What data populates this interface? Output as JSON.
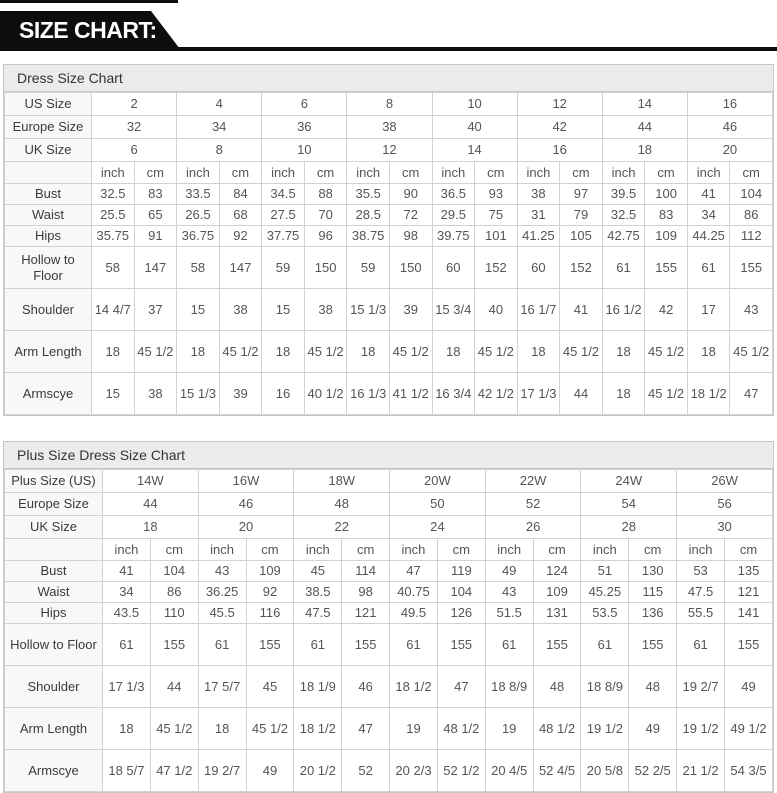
{
  "banner": {
    "title": "SIZE CHART:"
  },
  "colors": {
    "banner_bg": "#0d0d0d",
    "banner_text": "#ffffff",
    "section_title_bg": "#ebebeb",
    "border": "#c6c6c6",
    "label_cell_bg": "#f8f8f8",
    "value_text": "#555555",
    "label_text": "#3a3a3a"
  },
  "tables": [
    {
      "name": "dress-size-chart-table",
      "title": "Dress Size Chart",
      "size_rows": [
        {
          "label": "US Size",
          "values": [
            "2",
            "4",
            "6",
            "8",
            "10",
            "12",
            "14",
            "16"
          ]
        },
        {
          "label": "Europe Size",
          "values": [
            "32",
            "34",
            "36",
            "38",
            "40",
            "42",
            "44",
            "46"
          ]
        },
        {
          "label": "UK Size",
          "values": [
            "6",
            "8",
            "10",
            "12",
            "14",
            "16",
            "18",
            "20"
          ]
        }
      ],
      "unit_row": [
        "inch",
        "cm",
        "inch",
        "cm",
        "inch",
        "cm",
        "inch",
        "cm",
        "inch",
        "cm",
        "inch",
        "cm",
        "inch",
        "cm",
        "inch",
        "cm"
      ],
      "measure_rows": [
        {
          "label": "Bust",
          "values": [
            "32.5",
            "83",
            "33.5",
            "84",
            "34.5",
            "88",
            "35.5",
            "90",
            "36.5",
            "93",
            "38",
            "97",
            "39.5",
            "100",
            "41",
            "104"
          ]
        },
        {
          "label": "Waist",
          "values": [
            "25.5",
            "65",
            "26.5",
            "68",
            "27.5",
            "70",
            "28.5",
            "72",
            "29.5",
            "75",
            "31",
            "79",
            "32.5",
            "83",
            "34",
            "86"
          ]
        },
        {
          "label": "Hips",
          "values": [
            "35.75",
            "91",
            "36.75",
            "92",
            "37.75",
            "96",
            "38.75",
            "98",
            "39.75",
            "101",
            "41.25",
            "105",
            "42.75",
            "109",
            "44.25",
            "112"
          ]
        },
        {
          "label": "Hollow to Floor",
          "values": [
            "58",
            "147",
            "58",
            "147",
            "59",
            "150",
            "59",
            "150",
            "60",
            "152",
            "60",
            "152",
            "61",
            "155",
            "61",
            "155"
          ]
        },
        {
          "label": "Shoulder",
          "values": [
            "14 4/7",
            "37",
            "15",
            "38",
            "15",
            "38",
            "15 1/3",
            "39",
            "15 3/4",
            "40",
            "16 1/7",
            "41",
            "16 1/2",
            "42",
            "17",
            "43"
          ]
        },
        {
          "label": "Arm Length",
          "values": [
            "18",
            "45 1/2",
            "18",
            "45 1/2",
            "18",
            "45 1/2",
            "18",
            "45 1/2",
            "18",
            "45 1/2",
            "18",
            "45 1/2",
            "18",
            "45 1/2",
            "18",
            "45 1/2"
          ]
        },
        {
          "label": "Armscye",
          "values": [
            "15",
            "38",
            "15 1/3",
            "39",
            "16",
            "40 1/2",
            "16 1/3",
            "41 1/2",
            "16 3/4",
            "42 1/2",
            "17 1/3",
            "44",
            "18",
            "45 1/2",
            "18 1/2",
            "47"
          ]
        }
      ]
    },
    {
      "name": "plus-size-dress-size-chart-table",
      "title": "Plus Size Dress Size Chart",
      "size_rows": [
        {
          "label": "Plus Size (US)",
          "values": [
            "14W",
            "16W",
            "18W",
            "20W",
            "22W",
            "24W",
            "26W"
          ]
        },
        {
          "label": "Europe Size",
          "values": [
            "44",
            "46",
            "48",
            "50",
            "52",
            "54",
            "56"
          ]
        },
        {
          "label": "UK Size",
          "values": [
            "18",
            "20",
            "22",
            "24",
            "26",
            "28",
            "30"
          ]
        }
      ],
      "unit_row": [
        "inch",
        "cm",
        "inch",
        "cm",
        "inch",
        "cm",
        "inch",
        "cm",
        "inch",
        "cm",
        "inch",
        "cm",
        "inch",
        "cm"
      ],
      "measure_rows": [
        {
          "label": "Bust",
          "values": [
            "41",
            "104",
            "43",
            "109",
            "45",
            "114",
            "47",
            "119",
            "49",
            "124",
            "51",
            "130",
            "53",
            "135"
          ]
        },
        {
          "label": "Waist",
          "values": [
            "34",
            "86",
            "36.25",
            "92",
            "38.5",
            "98",
            "40.75",
            "104",
            "43",
            "109",
            "45.25",
            "115",
            "47.5",
            "121"
          ]
        },
        {
          "label": "Hips",
          "values": [
            "43.5",
            "110",
            "45.5",
            "116",
            "47.5",
            "121",
            "49.5",
            "126",
            "51.5",
            "131",
            "53.5",
            "136",
            "55.5",
            "141"
          ]
        },
        {
          "label": "Hollow to Floor",
          "values": [
            "61",
            "155",
            "61",
            "155",
            "61",
            "155",
            "61",
            "155",
            "61",
            "155",
            "61",
            "155",
            "61",
            "155"
          ]
        },
        {
          "label": "Shoulder",
          "values": [
            "17 1/3",
            "44",
            "17 5/7",
            "45",
            "18 1/9",
            "46",
            "18 1/2",
            "47",
            "18 8/9",
            "48",
            "18 8/9",
            "48",
            "19 2/7",
            "49"
          ]
        },
        {
          "label": "Arm Length",
          "values": [
            "18",
            "45 1/2",
            "18",
            "45 1/2",
            "18 1/2",
            "47",
            "19",
            "48 1/2",
            "19",
            "48 1/2",
            "19 1/2",
            "49",
            "19 1/2",
            "49 1/2"
          ]
        },
        {
          "label": "Armscye",
          "values": [
            "18 5/7",
            "47 1/2",
            "19 2/7",
            "49",
            "20 1/2",
            "52",
            "20 2/3",
            "52 1/2",
            "20 4/5",
            "52 4/5",
            "20 5/8",
            "52 2/5",
            "21 1/2",
            "54 3/5"
          ]
        }
      ]
    }
  ]
}
